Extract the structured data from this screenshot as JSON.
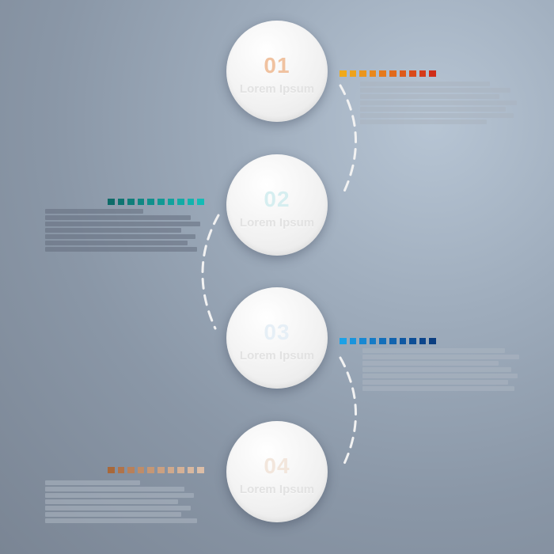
{
  "steps": [
    {
      "number": "01",
      "title": "Lorem Ipsum",
      "number_color": "#f0c2a0",
      "dot_colors": [
        "#f0a91a",
        "#eea21b",
        "#eb951c",
        "#e9881c",
        "#e57a1c",
        "#e16a1c",
        "#dd5a1b",
        "#d94a1a",
        "#d43b19",
        "#cf2d18"
      ]
    },
    {
      "number": "02",
      "title": "Lorem Ipsum",
      "number_color": "#d6eef0",
      "dot_colors": [
        "#0d6b68",
        "#0e7471",
        "#0f7e7a",
        "#108783",
        "#10908c",
        "#119994",
        "#12a29d",
        "#13aba5",
        "#14b3ad",
        "#15bbb5"
      ]
    },
    {
      "number": "03",
      "title": "Lorem Ipsum",
      "number_color": "#e6eff6",
      "dot_colors": [
        "#1da1e6",
        "#1a94dc",
        "#1888d2",
        "#157bc6",
        "#136fba",
        "#1163ae",
        "#0f58a2",
        "#0d4e96",
        "#0c458b",
        "#0b3e80"
      ]
    },
    {
      "number": "04",
      "title": "Lorem Ipsum",
      "number_color": "#f2e6dc",
      "dot_colors": [
        "#a8683a",
        "#b0734a",
        "#b8805a",
        "#bf8c68",
        "#c59775",
        "#cba081",
        "#d0a98c",
        "#d5b196",
        "#d9b89f",
        "#dcbea7"
      ]
    }
  ]
}
